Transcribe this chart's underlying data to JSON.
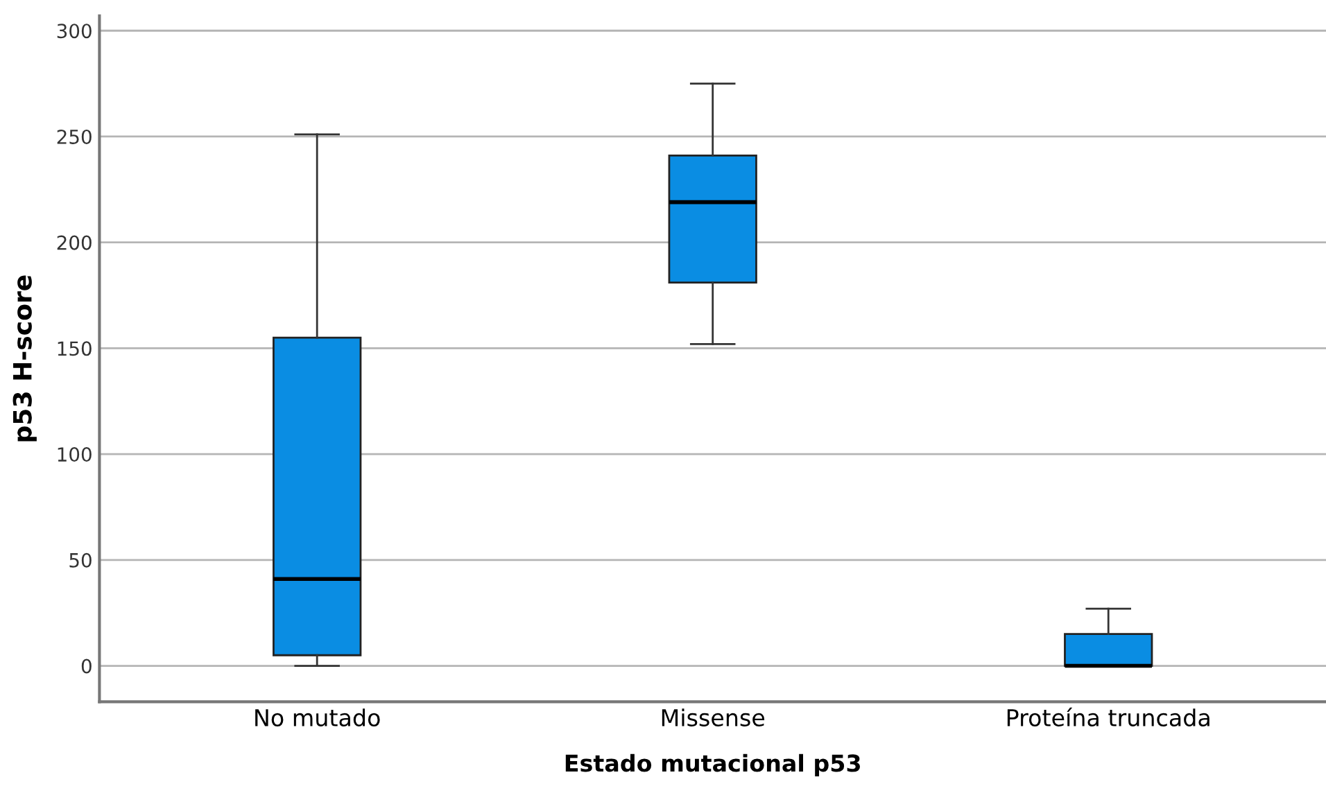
{
  "chart_data": {
    "type": "box",
    "xlabel": "Estado mutacional p53",
    "ylabel": "p53 H-score",
    "categories": [
      "No mutado",
      "Missense",
      "Proteína truncada"
    ],
    "boxes": [
      {
        "low": 0,
        "q1": 5,
        "median": 41,
        "q3": 155,
        "high": 251
      },
      {
        "low": 152,
        "q1": 181,
        "median": 219,
        "q3": 241,
        "high": 275
      },
      {
        "low": 0,
        "q1": 0,
        "median": 0,
        "q3": 15,
        "high": 27
      }
    ],
    "color": "#0a8de3",
    "ylim": [
      -17,
      307
    ],
    "yticks": [
      0,
      50,
      100,
      150,
      200,
      250,
      300
    ],
    "grid": "y"
  }
}
